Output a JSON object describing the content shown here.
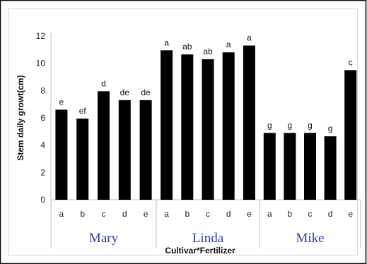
{
  "chart_data": {
    "type": "bar",
    "xlabel": "Cultivar*Fertilizer",
    "ylabel": "Stem daily growt(cm)",
    "ylim": [
      0,
      12
    ],
    "yticks": [
      "0",
      "2",
      "4",
      "6",
      "8",
      "10",
      "12"
    ],
    "grid": false,
    "legend": "none",
    "bar_color": "#000000",
    "group_label_color": "#2b3fb0",
    "groups": [
      {
        "name": "Mary",
        "categories": [
          "a",
          "b",
          "c",
          "d",
          "e"
        ],
        "values": [
          6.6,
          5.95,
          7.95,
          7.3,
          7.3
        ],
        "labels": [
          "e",
          "ef",
          "d",
          "de",
          "de"
        ]
      },
      {
        "name": "Linda",
        "categories": [
          "a",
          "b",
          "c",
          "d",
          "e"
        ],
        "values": [
          10.95,
          10.65,
          10.3,
          10.8,
          11.3
        ],
        "labels": [
          "a",
          "ab",
          "ab",
          "a",
          "a"
        ]
      },
      {
        "name": "Mike",
        "categories": [
          "a",
          "b",
          "c",
          "d",
          "e"
        ],
        "values": [
          4.9,
          4.9,
          4.9,
          4.65,
          9.5
        ],
        "labels": [
          "g",
          "g",
          "g",
          "g",
          "c"
        ]
      }
    ]
  }
}
